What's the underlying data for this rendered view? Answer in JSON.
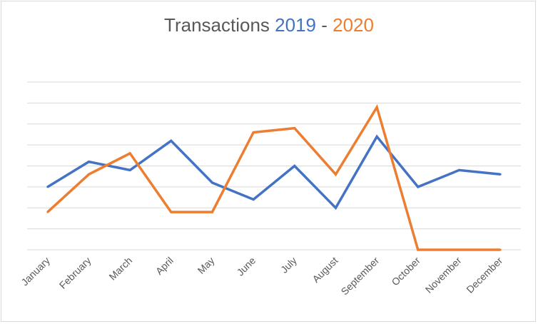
{
  "chart_data": {
    "type": "line",
    "title": {
      "prefix": "Transactions",
      "year1": "2019",
      "separator": " - ",
      "year2": "2020"
    },
    "categories": [
      "January",
      "February",
      "March",
      "April",
      "May",
      "June",
      "July",
      "August",
      "September",
      "October",
      "November",
      "December"
    ],
    "series": [
      {
        "name": "2019",
        "color": "#4472c4",
        "values": [
          3.0,
          4.2,
          3.8,
          5.2,
          3.2,
          2.4,
          4.0,
          2.0,
          5.4,
          3.0,
          3.8,
          3.6
        ]
      },
      {
        "name": "2020",
        "color": "#ed7d31",
        "values": [
          1.8,
          3.6,
          4.6,
          1.8,
          1.8,
          5.6,
          5.8,
          3.6,
          6.8,
          0.0,
          0.0,
          0.0
        ]
      }
    ],
    "ylim": [
      0,
      8
    ],
    "gridlines": 9,
    "y_tick_labels_shown": false,
    "legend": "none",
    "grid": true
  }
}
